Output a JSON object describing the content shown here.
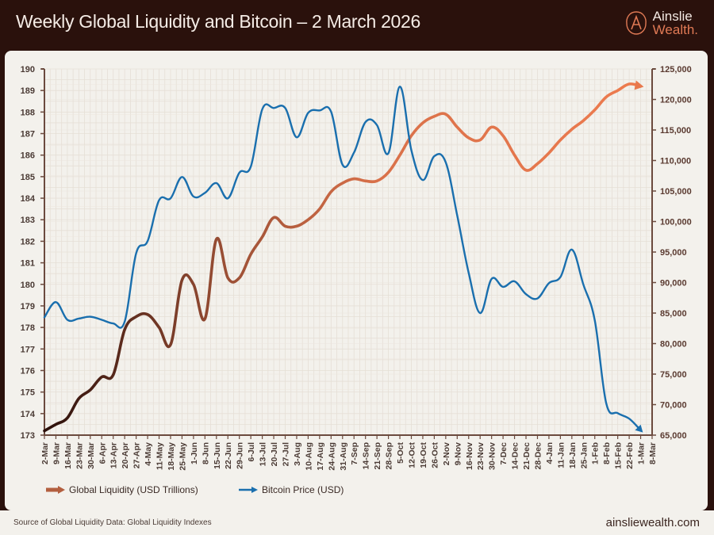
{
  "header": {
    "title": "Weekly Global Liquidity and Bitcoin – 2 March 2026",
    "logo_line1": "Ainslie",
    "logo_line2": "Wealth."
  },
  "footer": {
    "source": "Source of Global Liquidity Data: Global Liquidity Indexes",
    "url": "ainsliewealth.com"
  },
  "colors": {
    "background": "#2a110c",
    "card": "#f3f1ec",
    "axis": "#6b4a3e",
    "liquidity_start": "#2b0f0a",
    "liquidity_mid": "#9b4f35",
    "liquidity_end": "#e8794d",
    "bitcoin": "#1a6fae",
    "grid": "#e4ddd4"
  },
  "legend": {
    "items": [
      {
        "label": "Global Liquidity (USD Trillions)",
        "icon": "arrow-right-icon"
      },
      {
        "label": "Bitcoin Price (USD)",
        "icon": "arrow-right-icon"
      }
    ]
  },
  "chart_data": {
    "type": "line",
    "title": "Weekly Global Liquidity and Bitcoin – 2 March 2026",
    "xlabel": "",
    "ylabel_left": "Global Liquidity (USD Trillions)",
    "ylabel_right": "Bitcoin Price (USD)",
    "grid": true,
    "legend_position": "bottom-left",
    "categories": [
      "2-Mar",
      "9-Mar",
      "16-Mar",
      "23-Mar",
      "30-Mar",
      "6-Apr",
      "13-Apr",
      "20-Apr",
      "27-Apr",
      "4-May",
      "11-May",
      "18-May",
      "25-May",
      "1-Jun",
      "8-Jun",
      "15-Jun",
      "22-Jun",
      "29-Jun",
      "6-Jul",
      "13-Jul",
      "20-Jul",
      "27-Jul",
      "3-Aug",
      "10-Aug",
      "17-Aug",
      "24-Aug",
      "31-Aug",
      "7-Sep",
      "14-Sep",
      "21-Sep",
      "28-Sep",
      "5-Oct",
      "12-Oct",
      "19-Oct",
      "26-Oct",
      "2-Nov",
      "9-Nov",
      "16-Nov",
      "23-Nov",
      "30-Nov",
      "7-Dec",
      "14-Dec",
      "21-Dec",
      "28-Dec",
      "4-Jan",
      "11-Jan",
      "18-Jan",
      "25-Jan",
      "1-Feb",
      "8-Feb",
      "15-Feb",
      "22-Feb",
      "1-Mar",
      "8-Mar"
    ],
    "y_left": {
      "min": 173,
      "max": 190,
      "ticks": [
        "173",
        "174",
        "175",
        "176",
        "177",
        "178",
        "179",
        "180",
        "181",
        "182",
        "183",
        "184",
        "185",
        "186",
        "187",
        "188",
        "189",
        "190"
      ]
    },
    "y_right": {
      "min": 65000,
      "max": 125000,
      "ticks": [
        "65,000",
        "70,000",
        "75,000",
        "80,000",
        "85,000",
        "90,000",
        "95,000",
        "100,000",
        "105,000",
        "110,000",
        "115,000",
        "120,000",
        "125,000"
      ]
    },
    "series": [
      {
        "name": "Global Liquidity (USD Trillions)",
        "axis": "left",
        "values": [
          173.2,
          173.5,
          173.8,
          174.7,
          175.1,
          175.7,
          175.8,
          177.9,
          178.5,
          178.6,
          178.0,
          177.2,
          180.2,
          180.0,
          178.4,
          182.1,
          180.3,
          180.3,
          181.4,
          182.2,
          183.1,
          182.7,
          182.7,
          183.0,
          183.5,
          184.3,
          184.7,
          184.9,
          184.8,
          184.8,
          185.2,
          186.0,
          186.9,
          187.5,
          187.8,
          187.9,
          187.3,
          186.8,
          186.7,
          187.3,
          186.9,
          186.0,
          185.3,
          185.6,
          186.1,
          186.7,
          187.2,
          187.6,
          188.1,
          188.7,
          189.0,
          189.3,
          189.2
        ]
      },
      {
        "name": "Bitcoin Price (USD)",
        "axis": "right",
        "values": [
          84300,
          86800,
          83900,
          84100,
          84400,
          83900,
          83300,
          83600,
          94800,
          96800,
          103500,
          103800,
          107300,
          104100,
          104700,
          106300,
          103800,
          108000,
          109000,
          118400,
          118600,
          118600,
          113800,
          117800,
          118200,
          118000,
          109300,
          111300,
          116300,
          115800,
          111200,
          122100,
          111700,
          106800,
          110700,
          109700,
          101000,
          91600,
          85000,
          90600,
          89300,
          90200,
          88100,
          87400,
          89900,
          90900,
          95400,
          89700,
          83800,
          70200,
          68600,
          67700,
          65800
        ]
      }
    ]
  }
}
